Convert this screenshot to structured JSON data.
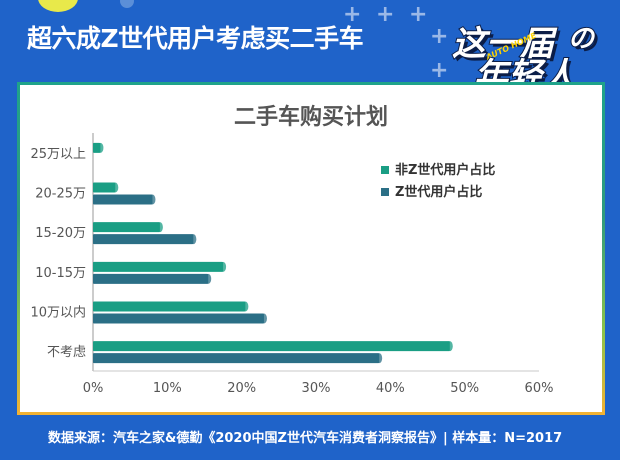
{
  "header": {
    "title": "超六成Z世代用户考虑买二手车"
  },
  "logo": {
    "line1": "这一届",
    "line2": "年轻人",
    "badge": "AUTO HOME",
    "no": "の"
  },
  "footer": {
    "source": "数据来源：汽车之家&德勤《2020中国Z世代汽车消费者洞察报告》| 样本量：N=2017"
  },
  "colors": {
    "background": "#1f63c9",
    "series_non_z": "#1a9e84",
    "series_z": "#2b6f86",
    "logo_yellow": "#ffd400"
  },
  "chart_data": {
    "type": "bar",
    "orientation": "horizontal",
    "title": "二手车购买计划",
    "categories": [
      "25万以上",
      "20-25万",
      "15-20万",
      "10-15万",
      "10万以内",
      "不考虑"
    ],
    "series": [
      {
        "name": "非Z世代用户占比",
        "values": [
          1,
          3,
          9,
          17.5,
          20.5,
          48
        ]
      },
      {
        "name": "Z世代用户占比",
        "values": [
          0,
          8,
          13.5,
          15.5,
          23,
          38.5
        ]
      }
    ],
    "xlim": [
      0,
      60
    ],
    "xticks": [
      "0%",
      "10%",
      "20%",
      "30%",
      "40%",
      "50%",
      "60%"
    ],
    "xlabel": "",
    "ylabel": "",
    "legend": "top-right",
    "grid": false
  }
}
